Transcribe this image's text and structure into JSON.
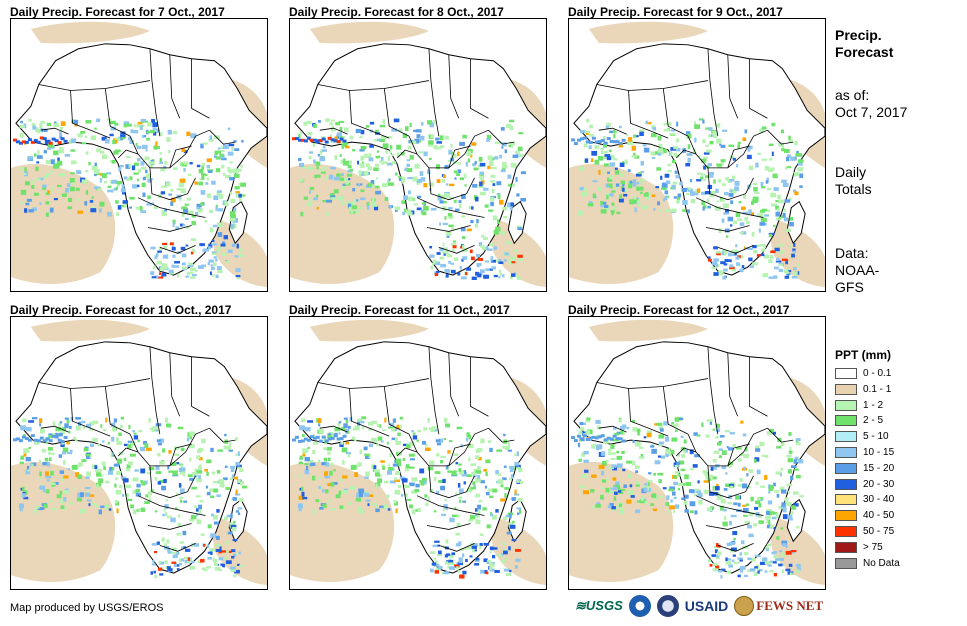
{
  "panels": [
    {
      "title": "Daily Precip. Forecast for 7 Oct., 2017"
    },
    {
      "title": "Daily Precip. Forecast for 8 Oct., 2017"
    },
    {
      "title": "Daily Precip. Forecast for 9 Oct., 2017"
    },
    {
      "title": "Daily Precip. Forecast for 10 Oct., 2017"
    },
    {
      "title": "Daily Precip. Forecast for 11 Oct., 2017"
    },
    {
      "title": "Daily Precip. Forecast for 12 Oct., 2017"
    }
  ],
  "sidebar": {
    "title_line1": "Precip.",
    "title_line2": "Forecast",
    "asof_line1": "as of:",
    "asof_line2": "Oct 7, 2017",
    "totals_line1": "Daily",
    "totals_line2": "Totals",
    "data_line1": "Data:",
    "data_line2": "NOAA-",
    "data_line3": "GFS"
  },
  "legend": {
    "title": "PPT (mm)",
    "items": [
      {
        "label": "0 - 0.1",
        "color": "#ffffff"
      },
      {
        "label": "0.1 - 1",
        "color": "#e8d2b0"
      },
      {
        "label": "1 - 2",
        "color": "#b6f2b0"
      },
      {
        "label": "2 - 5",
        "color": "#6ee26a"
      },
      {
        "label": "5 - 10",
        "color": "#b3eef5"
      },
      {
        "label": "10 - 15",
        "color": "#8ec6f0"
      },
      {
        "label": "15 - 20",
        "color": "#5a9ee8"
      },
      {
        "label": "20 - 30",
        "color": "#1f5fe0"
      },
      {
        "label": "30 - 40",
        "color": "#ffe27a"
      },
      {
        "label": "40 - 50",
        "color": "#ffa500"
      },
      {
        "label": "50 - 75",
        "color": "#ff3300"
      },
      {
        "label": "> 75",
        "color": "#a01818"
      },
      {
        "label": "No Data",
        "color": "#999999"
      }
    ]
  },
  "footer": {
    "credit": "Map produced by USGS/EROS",
    "logo_usgs": "≋USGS",
    "logo_usaid": "USAID",
    "logo_fews": "FEWS NET"
  }
}
